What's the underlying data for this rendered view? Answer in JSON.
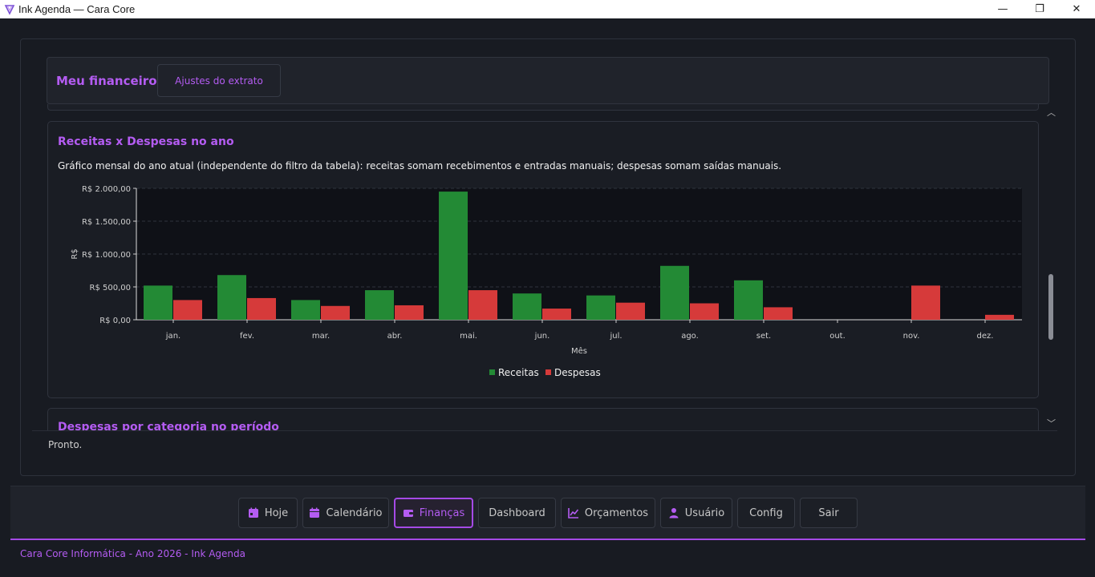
{
  "window": {
    "title": "Ink Agenda — Cara Core",
    "controls": {
      "minimize": "—",
      "maximize": "❐",
      "close": "✕"
    }
  },
  "header": {
    "title": "Meu financeiro",
    "settings_button": "Ajustes do extrato"
  },
  "chart_section": {
    "title": "Receitas x Despesas no ano",
    "description": "Gráfico mensal do ano atual (independente do filtro da tabela): receitas somam recebimentos e entradas manuais; despesas somam saídas manuais."
  },
  "next_section": {
    "title": "Despesas por categoria no período"
  },
  "status": "Pronto.",
  "chart_data": {
    "type": "bar",
    "categories": [
      "jan.",
      "fev.",
      "mar.",
      "abr.",
      "mai.",
      "jun.",
      "jul.",
      "ago.",
      "set.",
      "out.",
      "nov.",
      "dez."
    ],
    "series": [
      {
        "name": "Receitas",
        "color": "#238a35",
        "values": [
          520,
          680,
          300,
          450,
          1950,
          400,
          370,
          820,
          600,
          0,
          0,
          0
        ]
      },
      {
        "name": "Despesas",
        "color": "#d63a3a",
        "values": [
          300,
          330,
          210,
          220,
          450,
          170,
          260,
          250,
          190,
          0,
          520,
          75
        ]
      }
    ],
    "ylim": [
      0,
      2000
    ],
    "yticks": [
      0,
      500,
      1000,
      1500,
      2000
    ],
    "ytick_labels": [
      "R$ 0,00",
      "R$ 500,00",
      "R$ 1.000,00",
      "R$ 1.500,00",
      "R$ 2.000,00"
    ],
    "xlabel": "Mês",
    "ylabel": "R$",
    "grid": true,
    "legend": "bottom-center"
  },
  "nav": {
    "items": [
      {
        "label": "Hoje",
        "icon": "calendar-day-icon"
      },
      {
        "label": "Calendário",
        "icon": "calendar-icon"
      },
      {
        "label": "Finanças",
        "icon": "wallet-icon",
        "active": true
      },
      {
        "label": "Dashboard",
        "icon": ""
      },
      {
        "label": "Orçamentos",
        "icon": "chart-line-icon"
      },
      {
        "label": "Usuário",
        "icon": "user-icon"
      },
      {
        "label": "Config",
        "icon": ""
      },
      {
        "label": "Sair",
        "icon": ""
      }
    ]
  },
  "colors": {
    "accent": "#a54ae6",
    "background": "#181b22"
  },
  "footer": "Cara Core Informática - Ano 2026 - Ink Agenda"
}
